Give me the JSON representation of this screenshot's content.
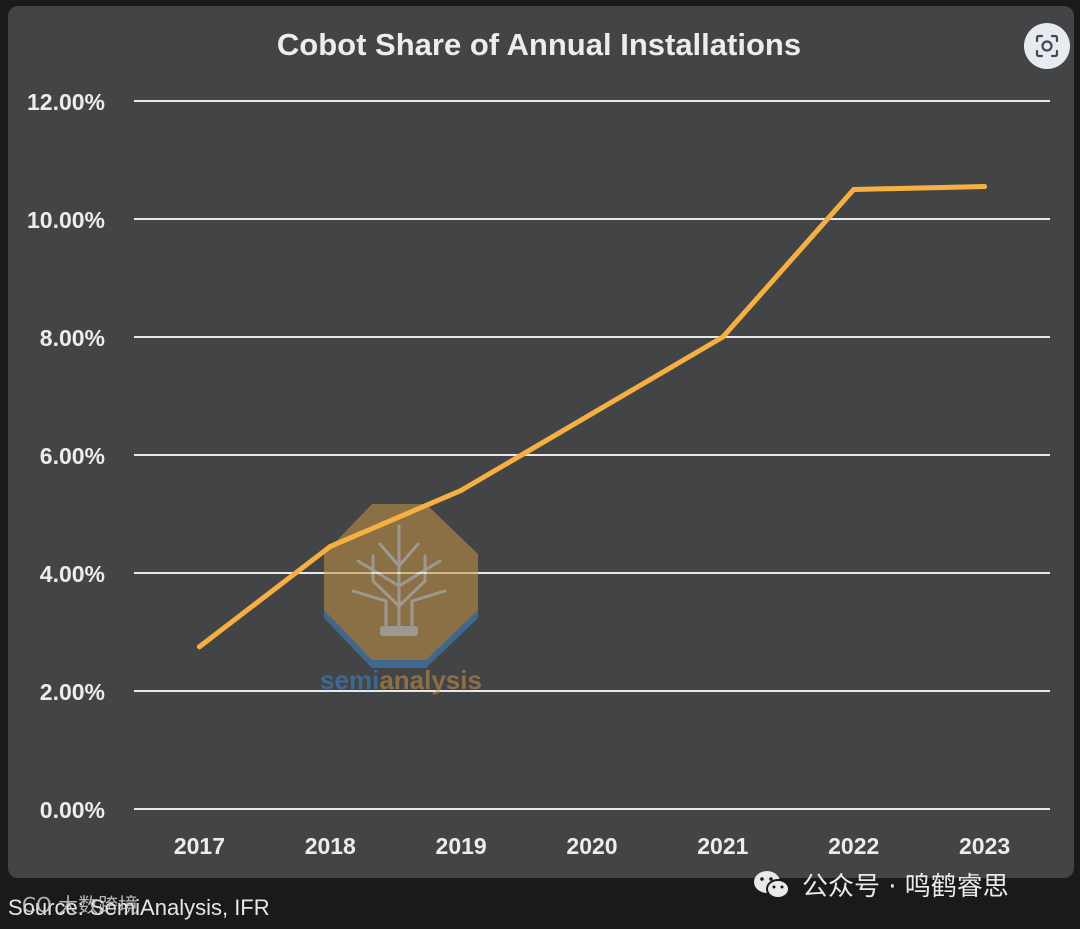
{
  "chart_data": {
    "type": "line",
    "title": "Cobot Share of Annual Installations",
    "x": [
      "2017",
      "2018",
      "2019",
      "2020",
      "2021",
      "2022",
      "2023"
    ],
    "series": [
      {
        "name": "Cobot share",
        "values": [
          2.75,
          4.45,
          5.4,
          6.7,
          8.0,
          10.5,
          10.55
        ],
        "color": "#f5b041"
      }
    ],
    "yticks": [
      "0.00%",
      "2.00%",
      "4.00%",
      "6.00%",
      "8.00%",
      "10.00%",
      "12.00%"
    ],
    "ylim": [
      0,
      12
    ],
    "grid": true,
    "xlabel": "",
    "ylabel": ""
  },
  "watermark": {
    "text_left": "semi",
    "text_right": "analysis",
    "accent": "#c79445",
    "blue": "#3b86c8"
  },
  "footer": {
    "source": "Source: SemiAnalysis, IFR",
    "overlay": "CO 大数跨境",
    "wechat_label": "公众号 · 鸣鹤睿思"
  },
  "colors": {
    "background": "#434446",
    "grid": "#e8e8e8",
    "text": "#ececec"
  }
}
